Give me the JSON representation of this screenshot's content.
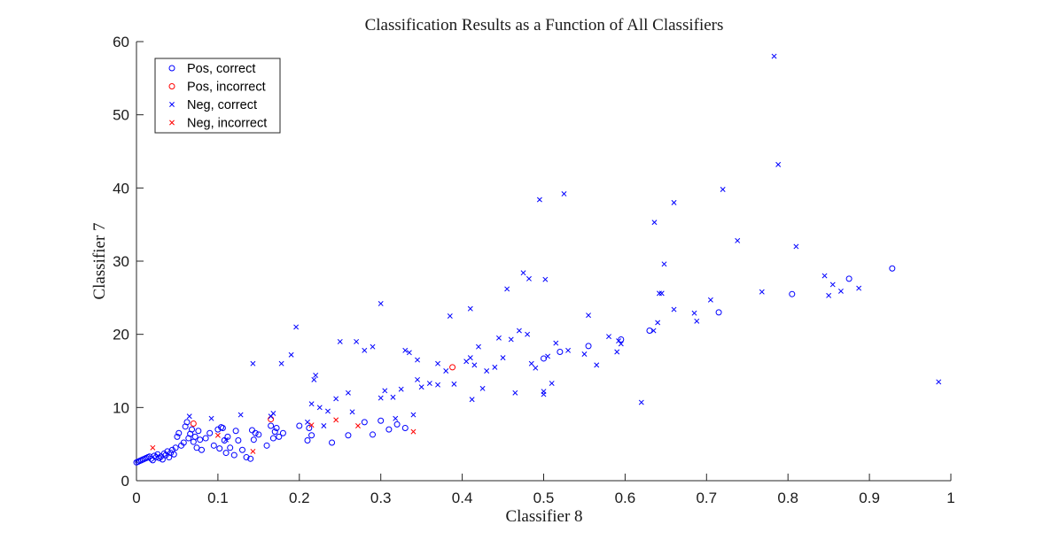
{
  "chart_data": {
    "type": "scatter",
    "title": "Classification Results as a Function of All Classifiers",
    "xlabel": "Classifier 8",
    "ylabel": "Classifier 7",
    "xlim": [
      0,
      1
    ],
    "ylim": [
      0,
      60
    ],
    "xticks": [
      "0",
      "0.1",
      "0.2",
      "0.3",
      "0.4",
      "0.5",
      "0.6",
      "0.7",
      "0.8",
      "0.9",
      "1"
    ],
    "yticks": [
      "0",
      "10",
      "20",
      "30",
      "40",
      "50",
      "60"
    ],
    "grid": false,
    "legend_position": "top-left",
    "series": [
      {
        "name": "Pos, correct",
        "marker": "circle",
        "color": "#0000ff",
        "points": [
          [
            0.0,
            2.5
          ],
          [
            0.002,
            2.6
          ],
          [
            0.004,
            2.7
          ],
          [
            0.006,
            2.8
          ],
          [
            0.008,
            2.9
          ],
          [
            0.01,
            3.0
          ],
          [
            0.012,
            3.1
          ],
          [
            0.014,
            3.2
          ],
          [
            0.016,
            3.3
          ],
          [
            0.018,
            3.0
          ],
          [
            0.02,
            2.8
          ],
          [
            0.022,
            3.4
          ],
          [
            0.024,
            3.2
          ],
          [
            0.026,
            3.6
          ],
          [
            0.028,
            3.1
          ],
          [
            0.03,
            3.3
          ],
          [
            0.032,
            2.9
          ],
          [
            0.034,
            3.7
          ],
          [
            0.036,
            3.5
          ],
          [
            0.038,
            4.0
          ],
          [
            0.04,
            3.2
          ],
          [
            0.042,
            3.8
          ],
          [
            0.044,
            4.2
          ],
          [
            0.046,
            3.6
          ],
          [
            0.048,
            4.5
          ],
          [
            0.05,
            6.0
          ],
          [
            0.052,
            6.5
          ],
          [
            0.055,
            4.8
          ],
          [
            0.058,
            5.2
          ],
          [
            0.06,
            7.4
          ],
          [
            0.062,
            8.0
          ],
          [
            0.064,
            5.8
          ],
          [
            0.066,
            6.4
          ],
          [
            0.068,
            7.0
          ],
          [
            0.07,
            5.3
          ],
          [
            0.072,
            6.0
          ],
          [
            0.074,
            4.5
          ],
          [
            0.076,
            6.8
          ],
          [
            0.078,
            5.6
          ],
          [
            0.08,
            4.2
          ],
          [
            0.085,
            5.8
          ],
          [
            0.09,
            6.5
          ],
          [
            0.095,
            4.8
          ],
          [
            0.1,
            7.0
          ],
          [
            0.102,
            4.4
          ],
          [
            0.104,
            7.3
          ],
          [
            0.106,
            7.2
          ],
          [
            0.108,
            5.5
          ],
          [
            0.11,
            3.8
          ],
          [
            0.112,
            6.0
          ],
          [
            0.115,
            4.5
          ],
          [
            0.12,
            3.5
          ],
          [
            0.122,
            6.8
          ],
          [
            0.125,
            5.5
          ],
          [
            0.13,
            4.2
          ],
          [
            0.135,
            3.2
          ],
          [
            0.14,
            3.0
          ],
          [
            0.142,
            6.9
          ],
          [
            0.144,
            5.6
          ],
          [
            0.146,
            6.5
          ],
          [
            0.15,
            6.3
          ],
          [
            0.16,
            4.8
          ],
          [
            0.165,
            7.5
          ],
          [
            0.168,
            5.8
          ],
          [
            0.17,
            6.7
          ],
          [
            0.172,
            7.2
          ],
          [
            0.175,
            6.0
          ],
          [
            0.18,
            6.5
          ],
          [
            0.2,
            7.5
          ],
          [
            0.21,
            5.5
          ],
          [
            0.212,
            7.2
          ],
          [
            0.215,
            6.2
          ],
          [
            0.24,
            5.2
          ],
          [
            0.26,
            6.2
          ],
          [
            0.28,
            8.0
          ],
          [
            0.29,
            6.3
          ],
          [
            0.3,
            8.2
          ],
          [
            0.31,
            7.0
          ],
          [
            0.32,
            7.7
          ],
          [
            0.33,
            7.2
          ],
          [
            0.5,
            16.7
          ],
          [
            0.52,
            17.6
          ],
          [
            0.555,
            18.4
          ],
          [
            0.595,
            19.3
          ],
          [
            0.63,
            20.5
          ],
          [
            0.715,
            23.0
          ],
          [
            0.805,
            25.5
          ],
          [
            0.875,
            27.6
          ],
          [
            0.928,
            29.0
          ]
        ]
      },
      {
        "name": "Pos, incorrect",
        "marker": "circle",
        "color": "#ff0000",
        "points": [
          [
            0.07,
            7.8
          ],
          [
            0.165,
            8.4
          ],
          [
            0.388,
            15.5
          ]
        ]
      },
      {
        "name": "Neg, correct",
        "marker": "x",
        "color": "#0000ff",
        "points": [
          [
            0.065,
            8.8
          ],
          [
            0.092,
            8.5
          ],
          [
            0.11,
            5.6
          ],
          [
            0.128,
            9.0
          ],
          [
            0.143,
            16.0
          ],
          [
            0.165,
            8.8
          ],
          [
            0.168,
            9.2
          ],
          [
            0.178,
            16.0
          ],
          [
            0.19,
            17.2
          ],
          [
            0.196,
            21.0
          ],
          [
            0.21,
            8.0
          ],
          [
            0.215,
            10.5
          ],
          [
            0.218,
            13.8
          ],
          [
            0.22,
            14.4
          ],
          [
            0.225,
            10.0
          ],
          [
            0.23,
            7.5
          ],
          [
            0.235,
            9.5
          ],
          [
            0.245,
            11.2
          ],
          [
            0.25,
            19.0
          ],
          [
            0.26,
            12.0
          ],
          [
            0.265,
            9.4
          ],
          [
            0.27,
            19.0
          ],
          [
            0.28,
            17.8
          ],
          [
            0.29,
            18.3
          ],
          [
            0.3,
            24.2
          ],
          [
            0.3,
            11.3
          ],
          [
            0.305,
            12.3
          ],
          [
            0.315,
            11.4
          ],
          [
            0.318,
            8.5
          ],
          [
            0.325,
            12.5
          ],
          [
            0.33,
            17.8
          ],
          [
            0.335,
            17.5
          ],
          [
            0.34,
            9.0
          ],
          [
            0.345,
            13.8
          ],
          [
            0.345,
            16.5
          ],
          [
            0.35,
            12.8
          ],
          [
            0.36,
            13.3
          ],
          [
            0.37,
            16.0
          ],
          [
            0.37,
            13.1
          ],
          [
            0.38,
            15.0
          ],
          [
            0.385,
            22.5
          ],
          [
            0.39,
            13.2
          ],
          [
            0.405,
            16.3
          ],
          [
            0.41,
            23.5
          ],
          [
            0.41,
            16.8
          ],
          [
            0.412,
            11.1
          ],
          [
            0.415,
            15.8
          ],
          [
            0.42,
            18.3
          ],
          [
            0.425,
            12.6
          ],
          [
            0.43,
            15.0
          ],
          [
            0.44,
            15.5
          ],
          [
            0.445,
            19.5
          ],
          [
            0.45,
            16.8
          ],
          [
            0.455,
            26.2
          ],
          [
            0.46,
            19.3
          ],
          [
            0.465,
            12.0
          ],
          [
            0.47,
            20.5
          ],
          [
            0.475,
            28.4
          ],
          [
            0.48,
            20.0
          ],
          [
            0.482,
            27.6
          ],
          [
            0.485,
            16.0
          ],
          [
            0.49,
            15.4
          ],
          [
            0.495,
            38.4
          ],
          [
            0.5,
            12.2
          ],
          [
            0.5,
            11.8
          ],
          [
            0.502,
            27.5
          ],
          [
            0.505,
            17.0
          ],
          [
            0.51,
            13.3
          ],
          [
            0.515,
            18.8
          ],
          [
            0.525,
            39.2
          ],
          [
            0.53,
            17.8
          ],
          [
            0.55,
            17.3
          ],
          [
            0.555,
            22.6
          ],
          [
            0.565,
            15.8
          ],
          [
            0.58,
            19.7
          ],
          [
            0.59,
            17.6
          ],
          [
            0.592,
            19.1
          ],
          [
            0.595,
            18.7
          ],
          [
            0.62,
            10.7
          ],
          [
            0.635,
            20.5
          ],
          [
            0.636,
            35.3
          ],
          [
            0.64,
            21.6
          ],
          [
            0.642,
            25.6
          ],
          [
            0.645,
            25.6
          ],
          [
            0.648,
            29.6
          ],
          [
            0.66,
            38.0
          ],
          [
            0.66,
            23.4
          ],
          [
            0.685,
            22.9
          ],
          [
            0.688,
            21.8
          ],
          [
            0.705,
            24.7
          ],
          [
            0.72,
            39.8
          ],
          [
            0.738,
            32.8
          ],
          [
            0.768,
            25.8
          ],
          [
            0.783,
            58.0
          ],
          [
            0.788,
            43.2
          ],
          [
            0.81,
            32.0
          ],
          [
            0.845,
            28.0
          ],
          [
            0.85,
            25.3
          ],
          [
            0.855,
            26.8
          ],
          [
            0.865,
            25.9
          ],
          [
            0.887,
            26.3
          ],
          [
            0.985,
            13.5
          ]
        ]
      },
      {
        "name": "Neg, incorrect",
        "marker": "x",
        "color": "#ff0000",
        "points": [
          [
            0.02,
            4.5
          ],
          [
            0.1,
            6.2
          ],
          [
            0.143,
            4.0
          ],
          [
            0.215,
            7.6
          ],
          [
            0.245,
            8.3
          ],
          [
            0.272,
            7.5
          ],
          [
            0.34,
            6.7
          ]
        ]
      }
    ]
  }
}
